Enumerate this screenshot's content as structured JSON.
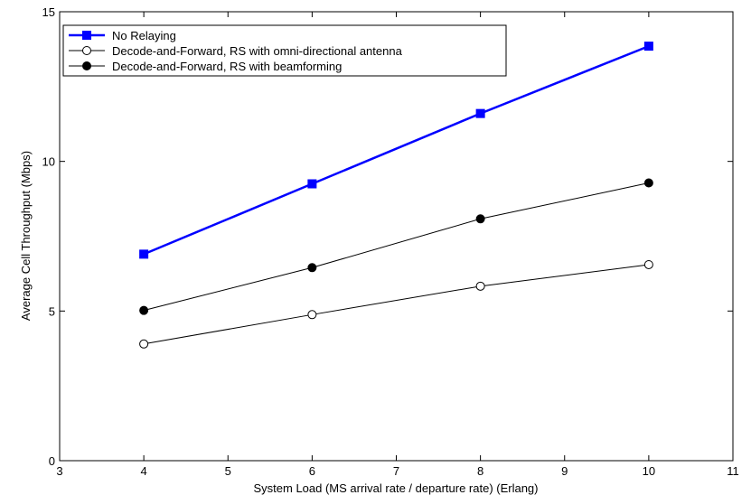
{
  "chart_data": {
    "type": "line",
    "title": "",
    "xlabel": "System Load (MS arrival rate / departure rate) (Erlang)",
    "ylabel": "Average Cell Throughput (Mbps)",
    "xlim": [
      3,
      11
    ],
    "ylim": [
      0,
      15
    ],
    "xticks": [
      3,
      4,
      5,
      6,
      7,
      8,
      9,
      10,
      11
    ],
    "yticks": [
      0,
      5,
      10,
      15
    ],
    "x": [
      4,
      6,
      8,
      10
    ],
    "grid": false,
    "legend_position": "top-left",
    "series": [
      {
        "name": "No Relaying",
        "values": [
          6.9,
          9.25,
          11.6,
          13.85
        ],
        "color": "#0000ff",
        "marker": "filled-square",
        "line_width": "thick"
      },
      {
        "name": "Decode-and-Forward, RS with omni-directional antenna",
        "values": [
          3.9,
          4.88,
          5.83,
          6.55
        ],
        "color": "#000000",
        "marker": "open-circle",
        "line_width": "thin"
      },
      {
        "name": "Decode-and-Forward, RS with beamforming",
        "values": [
          5.02,
          6.45,
          8.08,
          9.28
        ],
        "color": "#000000",
        "marker": "filled-circle",
        "line_width": "thin"
      }
    ]
  }
}
